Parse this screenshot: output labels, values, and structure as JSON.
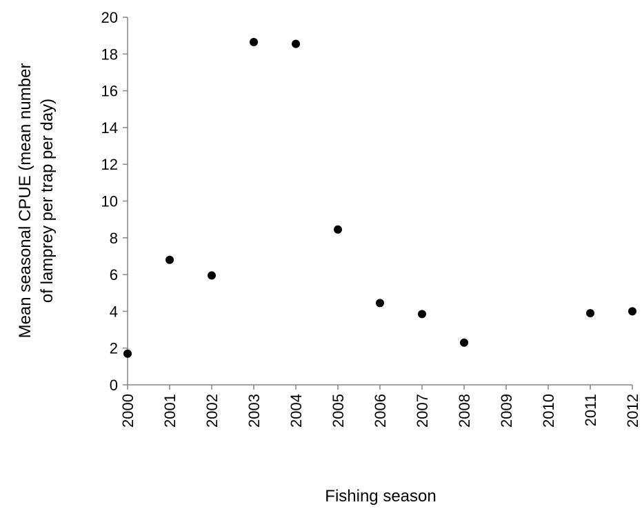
{
  "chart_data": {
    "type": "scatter",
    "title": "",
    "xlabel": "Fishing season",
    "ylabel_lines": [
      "Mean seasonal CPUE (mean number",
      "of lamprey per trap per day)"
    ],
    "categories": [
      "2000",
      "2001",
      "2002",
      "2003",
      "2004",
      "2005",
      "2006",
      "2007",
      "2008",
      "2009",
      "2010",
      "2011",
      "2012"
    ],
    "points": [
      {
        "x": "2000",
        "y": 1.7
      },
      {
        "x": "2001",
        "y": 6.8
      },
      {
        "x": "2002",
        "y": 5.95
      },
      {
        "x": "2003",
        "y": 18.65
      },
      {
        "x": "2004",
        "y": 18.55
      },
      {
        "x": "2005",
        "y": 8.45
      },
      {
        "x": "2006",
        "y": 4.45
      },
      {
        "x": "2007",
        "y": 3.85
      },
      {
        "x": "2008",
        "y": 2.3
      },
      {
        "x": "2011",
        "y": 3.9
      },
      {
        "x": "2012",
        "y": 4.0
      }
    ],
    "ylim": [
      0,
      20
    ],
    "yticks": [
      "0",
      "2",
      "4",
      "6",
      "8",
      "10",
      "12",
      "14",
      "16",
      "18",
      "20"
    ],
    "grid": false,
    "legend": "none",
    "marker_color": "#000000"
  }
}
